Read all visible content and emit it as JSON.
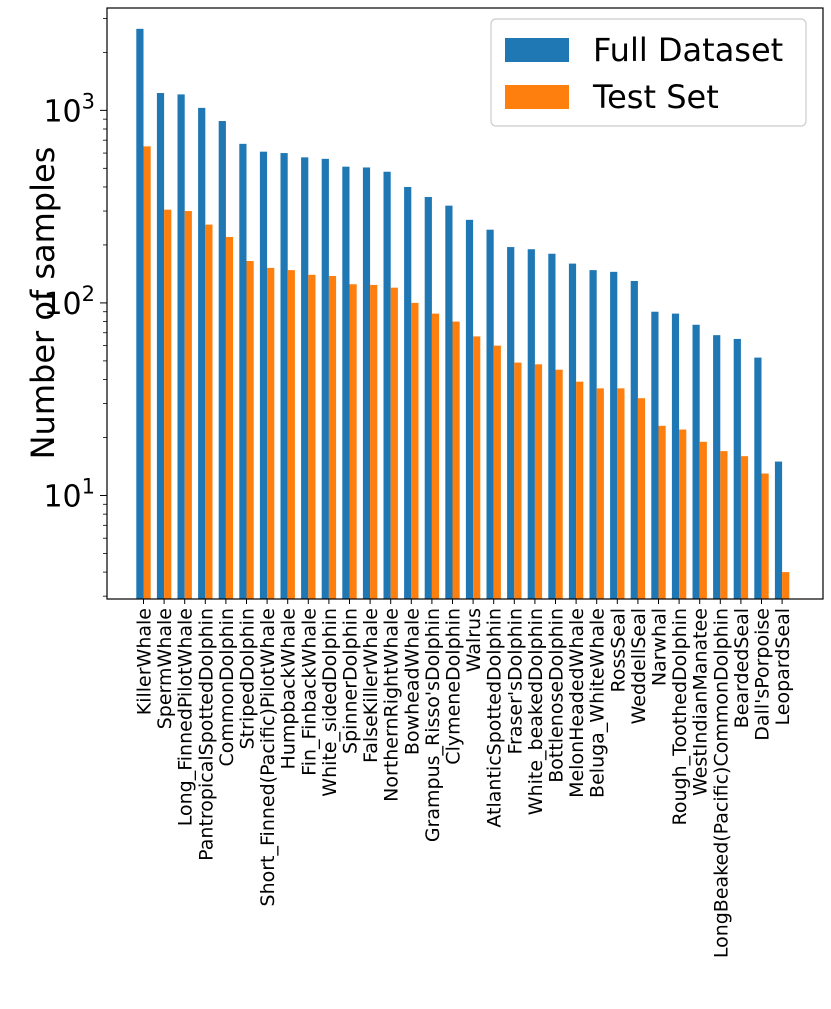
{
  "chart_data": {
    "type": "bar",
    "title": "",
    "xlabel": "",
    "ylabel": "Number of samples",
    "yscale": "log",
    "ylim": [
      2.9,
      3400
    ],
    "y_ticks": [
      {
        "value": 10,
        "base": "10",
        "exp": "1"
      },
      {
        "value": 100,
        "base": "10",
        "exp": "2"
      },
      {
        "value": 1000,
        "base": "10",
        "exp": "3"
      }
    ],
    "legend_position": "top-right",
    "colors": {
      "Full Dataset": "#1f77b4",
      "Test Set": "#ff7f0e"
    },
    "categories": [
      "KillerWhale",
      "SpermWhale",
      "Long_FinnedPilotWhale",
      "PantropicalSpottedDolphin",
      "CommonDolphin",
      "StripedDolphin",
      "Short_Finned(Pacific)PilotWhale",
      "HumpbackWhale",
      "Fin_FinbackWhale",
      "White_sidedDolphin",
      "SpinnerDolphin",
      "FalseKillerWhale",
      "NorthernRightWhale",
      "BowheadWhale",
      "Grampus_Risso'sDolphin",
      "ClymeneDolphin",
      "Walrus",
      "AtlanticSpottedDolphin",
      "Fraser'sDolphin",
      "White_beakedDolphin",
      "BottlenoseDolphin",
      "MelonHeadedWhale",
      "Beluga_WhiteWhale",
      "RossSeal",
      "WeddellSeal",
      "Narwhal",
      "Rough_ToothedDolphin",
      "WestIndianManatee",
      "LongBeaked(Pacific)CommonDolphin",
      "BeardedSeal",
      "Dall'sPorpoise",
      "LeopardSeal"
    ],
    "series": [
      {
        "name": "Full Dataset",
        "values": [
          2650,
          1230,
          1210,
          1030,
          880,
          670,
          610,
          600,
          570,
          560,
          510,
          505,
          480,
          400,
          355,
          320,
          270,
          240,
          195,
          190,
          180,
          160,
          148,
          145,
          130,
          90,
          88,
          77,
          68,
          65,
          52,
          15
        ]
      },
      {
        "name": "Test Set",
        "values": [
          650,
          305,
          300,
          255,
          220,
          165,
          152,
          148,
          140,
          138,
          125,
          124,
          120,
          100,
          88,
          80,
          67,
          60,
          49,
          48,
          45,
          39,
          36,
          36,
          32,
          23,
          22,
          19,
          17,
          16,
          13,
          4
        ]
      }
    ]
  }
}
